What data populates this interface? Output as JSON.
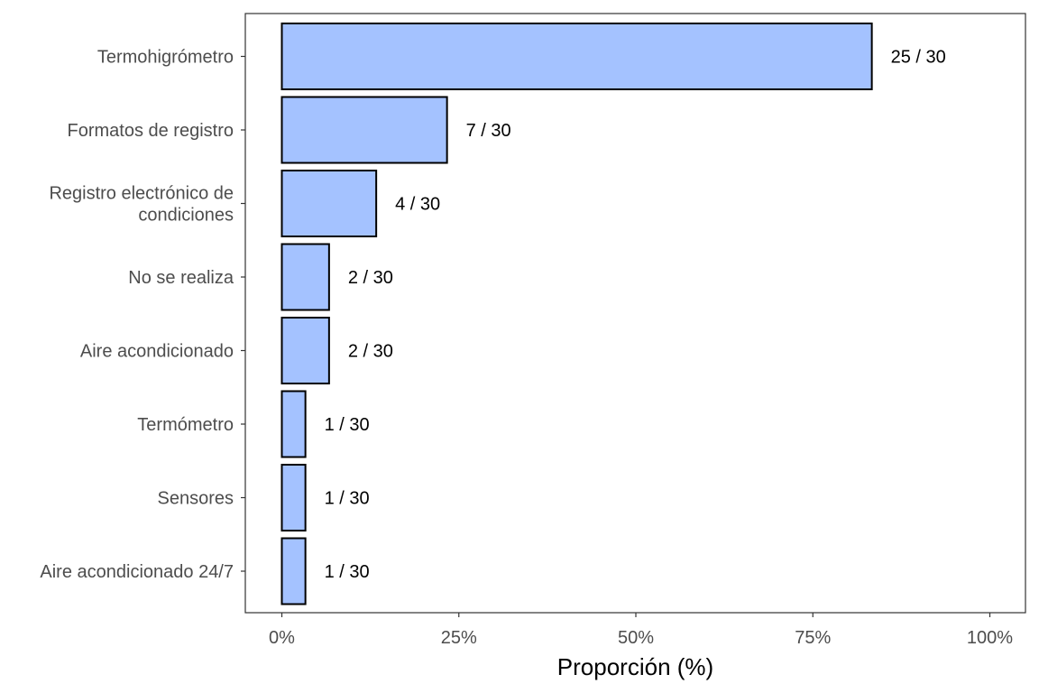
{
  "chart_data": {
    "type": "bar",
    "orientation": "horizontal",
    "categories": [
      [
        "Termohigrómetro"
      ],
      [
        "Formatos de registro"
      ],
      [
        "Registro electrónico de",
        "condiciones"
      ],
      [
        "No se realiza"
      ],
      [
        "Aire acondicionado"
      ],
      [
        "Termómetro"
      ],
      [
        "Sensores"
      ],
      [
        "Aire acondicionado 24/7"
      ]
    ],
    "values": [
      83.33,
      23.33,
      13.33,
      6.67,
      6.67,
      3.33,
      3.33,
      3.33
    ],
    "data_labels": [
      "25 / 30",
      "7 / 30",
      "4 / 30",
      "2 / 30",
      "2 / 30",
      "1 / 30",
      "1 / 30",
      "1 / 30"
    ],
    "xlabel": "Proporción (%)",
    "ylabel": "",
    "xlim": [
      0,
      100
    ],
    "xticks": [
      0,
      25,
      50,
      75,
      100
    ],
    "xtick_labels": [
      "0%",
      "25%",
      "50%",
      "75%",
      "100%"
    ],
    "grid": false,
    "legend": "none",
    "bar_fill": "#a4c2ff",
    "bar_stroke": "#000000"
  }
}
